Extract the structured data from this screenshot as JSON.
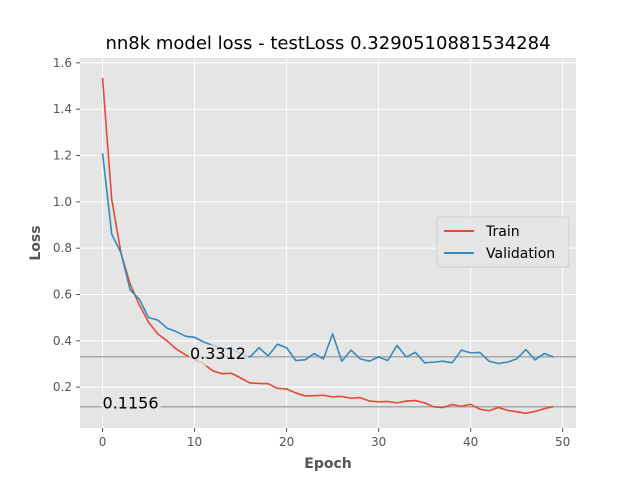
{
  "chart_data": {
    "type": "line",
    "title": "nn8k model loss - testLoss 0.3290510881534284",
    "xlabel": "Epoch",
    "ylabel": "Loss",
    "xlim": [
      -2.45,
      51.45
    ],
    "ylim": [
      0.0236,
      1.6211
    ],
    "xticks": [
      0,
      10,
      20,
      30,
      40,
      50
    ],
    "yticks": [
      0.2,
      0.4,
      0.6,
      0.8,
      1.0,
      1.2,
      1.4,
      1.6
    ],
    "xtick_labels": [
      "0",
      "10",
      "20",
      "30",
      "40",
      "50"
    ],
    "ytick_labels": [
      "0.2",
      "0.4",
      "0.6",
      "0.8",
      "1.0",
      "1.2",
      "1.4",
      "1.6"
    ],
    "grid": true,
    "legend_position": "center-right",
    "x": [
      0,
      1,
      2,
      3,
      4,
      5,
      6,
      7,
      8,
      9,
      10,
      11,
      12,
      13,
      14,
      15,
      16,
      17,
      18,
      19,
      20,
      21,
      22,
      23,
      24,
      25,
      26,
      27,
      28,
      29,
      30,
      31,
      32,
      33,
      34,
      35,
      36,
      37,
      38,
      39,
      40,
      41,
      42,
      43,
      44,
      45,
      46,
      47,
      48,
      49
    ],
    "series": [
      {
        "name": "Train",
        "color": "#e24a33",
        "values": [
          1.535,
          1.01,
          0.78,
          0.645,
          0.555,
          0.48,
          0.43,
          0.4,
          0.365,
          0.34,
          0.32,
          0.3,
          0.27,
          0.258,
          0.26,
          0.24,
          0.218,
          0.216,
          0.215,
          0.195,
          0.192,
          0.175,
          0.162,
          0.163,
          0.165,
          0.158,
          0.16,
          0.152,
          0.155,
          0.14,
          0.137,
          0.138,
          0.132,
          0.14,
          0.142,
          0.132,
          0.115,
          0.112,
          0.125,
          0.117,
          0.126,
          0.105,
          0.098,
          0.112,
          0.1,
          0.094,
          0.087,
          0.095,
          0.107,
          0.116
        ]
      },
      {
        "name": "Validation",
        "color": "#348abd",
        "values": [
          1.21,
          0.86,
          0.78,
          0.62,
          0.58,
          0.5,
          0.49,
          0.455,
          0.44,
          0.42,
          0.415,
          0.395,
          0.38,
          0.37,
          0.365,
          0.345,
          0.33,
          0.37,
          0.335,
          0.385,
          0.37,
          0.315,
          0.318,
          0.345,
          0.322,
          0.43,
          0.312,
          0.36,
          0.322,
          0.312,
          0.33,
          0.315,
          0.38,
          0.33,
          0.35,
          0.305,
          0.308,
          0.312,
          0.305,
          0.36,
          0.348,
          0.35,
          0.312,
          0.302,
          0.308,
          0.322,
          0.362,
          0.318,
          0.345,
          0.33
        ]
      }
    ],
    "reference_lines": [
      {
        "y": 0.3312,
        "label": "0.3312",
        "label_x": 9.5,
        "color": "#a8a8a8"
      },
      {
        "y": 0.1156,
        "label": "0.1156",
        "label_x": 0,
        "color": "#a8a8a8"
      }
    ]
  }
}
